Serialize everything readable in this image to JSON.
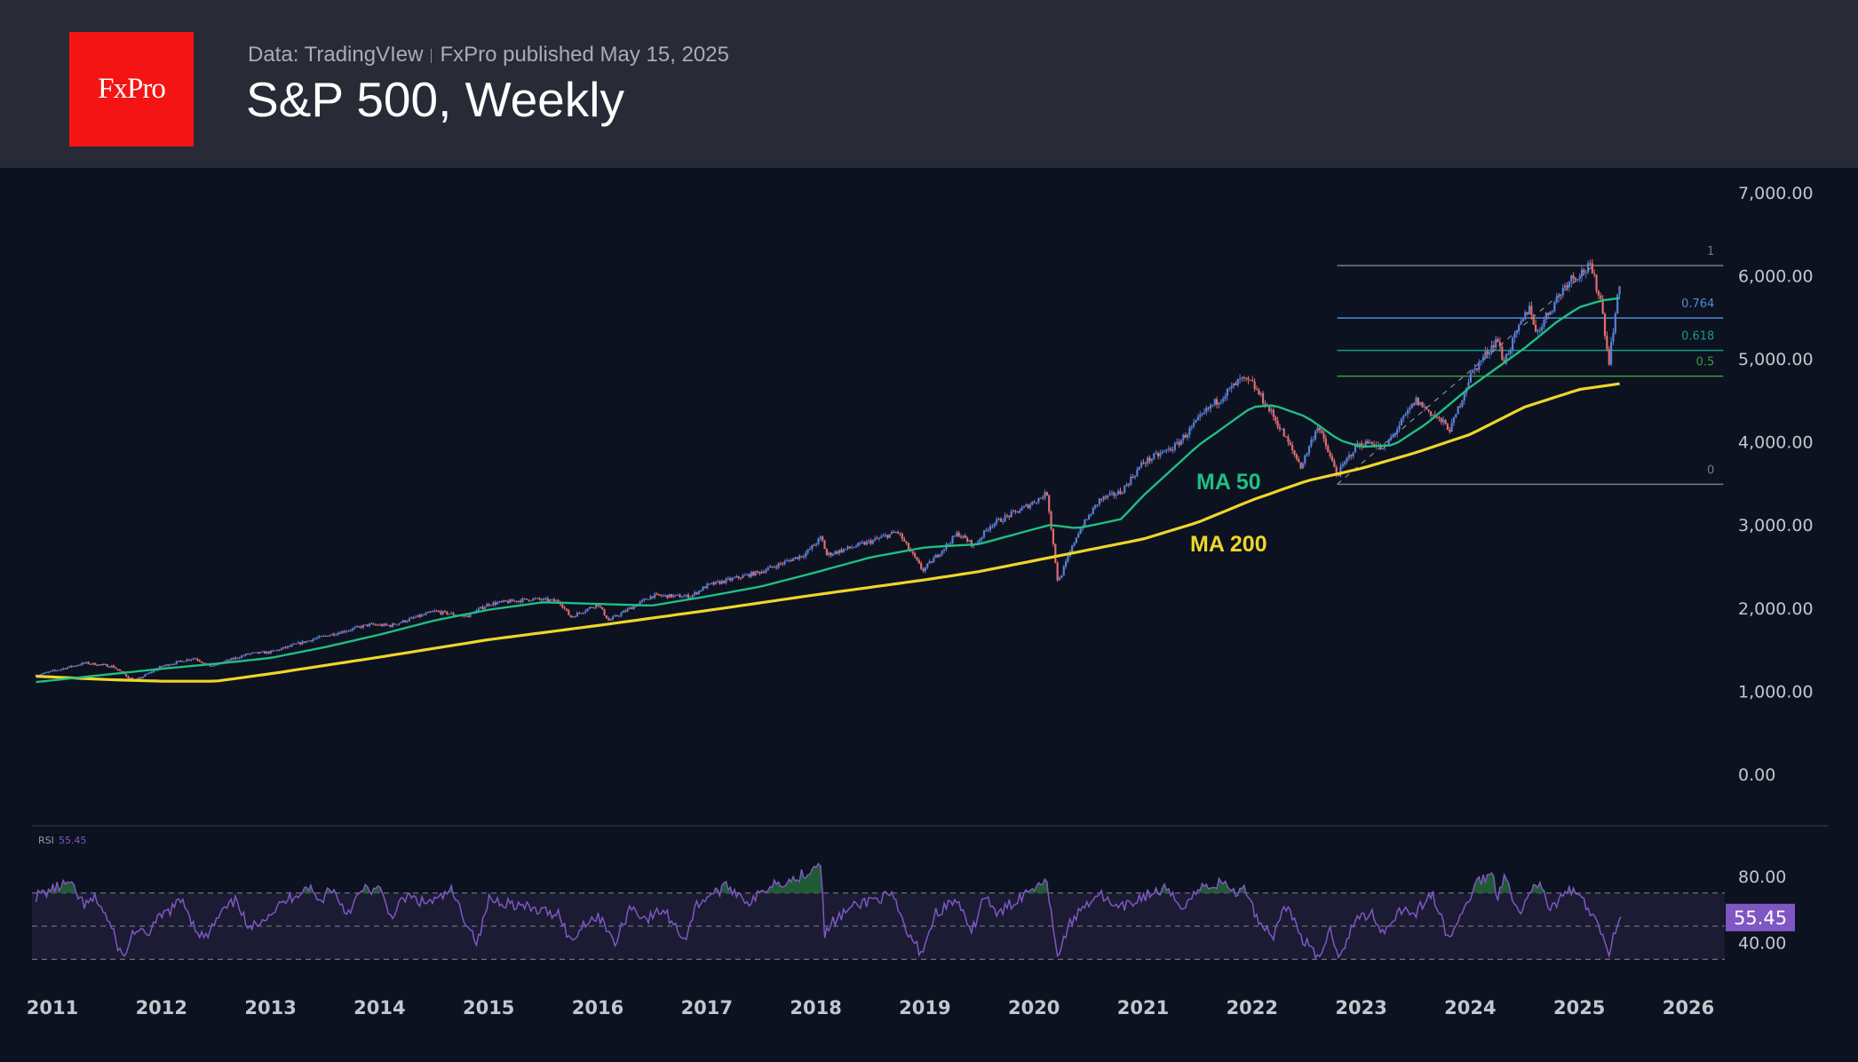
{
  "header": {
    "logo_text": "FxPro",
    "source": "Data: TradingVIew",
    "published": "FxPro published May 15, 2025",
    "title": "S&P 500, Weekly"
  },
  "colors": {
    "up_candle": "#5b7fd6",
    "down_candle": "#e06c70",
    "ma50": "#1fbf82",
    "ma200": "#eed62b",
    "rsi": "#7e57c2",
    "rsi_badge": "#7e57c2",
    "fib_1": "#787b86",
    "fib_0764": "#4f8fd6",
    "fib_0618": "#169a8a",
    "fib_05": "#3f9a3f",
    "fib_0": "#787b86"
  },
  "chart_data": [
    {
      "type": "line",
      "title": "S&P 500, Weekly",
      "ylim": [
        0,
        7000
      ],
      "y_ticks": [
        "7,000.00",
        "6,000.00",
        "5,000.00",
        "4,000.00",
        "3,000.00",
        "2,000.00",
        "1,000.00",
        "0.00"
      ],
      "y_tick_values": [
        7000,
        6000,
        5000,
        4000,
        3000,
        2000,
        1000,
        0
      ],
      "x_ticks": [
        "2011",
        "2012",
        "2013",
        "2014",
        "2015",
        "2016",
        "2017",
        "2018",
        "2019",
        "2020",
        "2021",
        "2022",
        "2023",
        "2024",
        "2025",
        "2026"
      ],
      "x_range": [
        2011.0,
        2026.2
      ],
      "price_anchors": {
        "x": [
          2010.85,
          2011.3,
          2011.55,
          2011.75,
          2012.0,
          2012.3,
          2012.45,
          2012.8,
          2013.0,
          2013.4,
          2013.9,
          2014.1,
          2014.5,
          2014.8,
          2015.0,
          2015.4,
          2015.65,
          2015.75,
          2016.0,
          2016.1,
          2016.5,
          2016.85,
          2017.0,
          2017.5,
          2017.9,
          2018.05,
          2018.1,
          2018.5,
          2018.75,
          2018.98,
          2019.3,
          2019.45,
          2019.6,
          2019.9,
          2020.12,
          2020.22,
          2020.4,
          2020.6,
          2020.8,
          2021.0,
          2021.3,
          2021.6,
          2021.9,
          2022.0,
          2022.2,
          2022.45,
          2022.6,
          2022.78,
          2022.95,
          2023.1,
          2023.2,
          2023.5,
          2023.82,
          2024.0,
          2024.25,
          2024.3,
          2024.55,
          2024.6,
          2024.9,
          2025.1,
          2025.2,
          2025.27,
          2025.32,
          2025.37
        ],
        "y": [
          1190,
          1340,
          1300,
          1120,
          1300,
          1400,
          1300,
          1450,
          1470,
          1630,
          1800,
          1790,
          1960,
          1900,
          2050,
          2110,
          2080,
          1890,
          2050,
          1850,
          2150,
          2140,
          2270,
          2440,
          2650,
          2850,
          2640,
          2800,
          2920,
          2450,
          2900,
          2750,
          3000,
          3200,
          3380,
          2300,
          2900,
          3300,
          3400,
          3750,
          3950,
          4400,
          4750,
          4700,
          4300,
          3700,
          4200,
          3600,
          3950,
          4000,
          3900,
          4500,
          4150,
          4800,
          5250,
          4950,
          5650,
          5300,
          5950,
          6100,
          5700,
          4950,
          5450,
          5880
        ]
      },
      "series": [
        {
          "name": "MA 50",
          "x": [
            2010.85,
            2011.5,
            2012.0,
            2012.5,
            2013.0,
            2013.5,
            2014.0,
            2014.5,
            2015.0,
            2015.5,
            2016.0,
            2016.5,
            2017.0,
            2017.5,
            2018.0,
            2018.5,
            2019.0,
            2019.5,
            2020.0,
            2020.15,
            2020.4,
            2020.8,
            2021.0,
            2021.5,
            2022.0,
            2022.2,
            2022.5,
            2022.8,
            2023.0,
            2023.3,
            2023.6,
            2024.0,
            2024.5,
            2024.8,
            2025.0,
            2025.2,
            2025.37
          ],
          "y": [
            1110,
            1200,
            1270,
            1330,
            1400,
            1530,
            1680,
            1850,
            1980,
            2070,
            2050,
            2030,
            2140,
            2260,
            2430,
            2610,
            2730,
            2770,
            2950,
            3000,
            2960,
            3070,
            3350,
            3950,
            4420,
            4440,
            4300,
            4020,
            3940,
            3960,
            4220,
            4660,
            5130,
            5450,
            5620,
            5700,
            5730
          ]
        },
        {
          "name": "MA 200",
          "x": [
            2010.85,
            2011.5,
            2012.0,
            2012.5,
            2013.0,
            2014.0,
            2015.0,
            2016.0,
            2017.0,
            2018.0,
            2019.0,
            2019.5,
            2020.0,
            2020.5,
            2021.0,
            2021.5,
            2022.0,
            2022.5,
            2023.0,
            2023.5,
            2024.0,
            2024.5,
            2025.0,
            2025.37
          ],
          "y": [
            1180,
            1140,
            1120,
            1120,
            1210,
            1410,
            1620,
            1790,
            1970,
            2160,
            2340,
            2440,
            2570,
            2700,
            2830,
            3030,
            3300,
            3530,
            3680,
            3870,
            4090,
            4420,
            4630,
            4700
          ]
        }
      ],
      "annotations": {
        "ma50_label": "MA 50",
        "ma200_label": "MA 200"
      },
      "fibonacci": {
        "start": {
          "x": 2022.78,
          "y": 3490
        },
        "end": {
          "x": 2025.13,
          "y": 6120
        },
        "levels": [
          {
            "label": "1",
            "price": 6120
          },
          {
            "label": "0.764",
            "price": 5490
          },
          {
            "label": "0.618",
            "price": 5100
          },
          {
            "label": "0.5",
            "price": 4790
          },
          {
            "label": "0",
            "price": 3490
          }
        ],
        "extends_to": 2026.32
      },
      "legend": "none",
      "grid": false
    },
    {
      "type": "line",
      "title": "RSI",
      "current_value": "55.45",
      "ylim": [
        24,
        95
      ],
      "y_ticks": [
        "80.00",
        "40.00"
      ],
      "y_tick_values": [
        80,
        40
      ],
      "bands": {
        "upper": 70,
        "middle": 50,
        "lower": 30
      },
      "x": [
        2010.85,
        2011.0,
        2011.15,
        2011.3,
        2011.4,
        2011.5,
        2011.58,
        2011.65,
        2011.75,
        2011.85,
        2012.0,
        2012.2,
        2012.3,
        2012.4,
        2012.55,
        2012.7,
        2012.8,
        2012.9,
        2013.0,
        2013.2,
        2013.35,
        2013.45,
        2013.55,
        2013.7,
        2013.85,
        2014.0,
        2014.1,
        2014.25,
        2014.4,
        2014.55,
        2014.65,
        2014.8,
        2014.9,
        2015.0,
        2015.2,
        2015.4,
        2015.55,
        2015.65,
        2015.75,
        2015.9,
        2016.05,
        2016.15,
        2016.3,
        2016.45,
        2016.6,
        2016.8,
        2016.9,
        2017.0,
        2017.2,
        2017.4,
        2017.6,
        2017.8,
        2017.95,
        2018.05,
        2018.08,
        2018.15,
        2018.3,
        2018.5,
        2018.7,
        2018.85,
        2018.97,
        2019.1,
        2019.3,
        2019.42,
        2019.55,
        2019.65,
        2019.8,
        2020.0,
        2020.1,
        2020.15,
        2020.22,
        2020.3,
        2020.45,
        2020.6,
        2020.75,
        2020.85,
        2021.0,
        2021.2,
        2021.35,
        2021.55,
        2021.75,
        2021.85,
        2021.95,
        2022.05,
        2022.2,
        2022.3,
        2022.45,
        2022.6,
        2022.72,
        2022.8,
        2022.95,
        2023.1,
        2023.2,
        2023.35,
        2023.5,
        2023.65,
        2023.8,
        2023.92,
        2024.05,
        2024.2,
        2024.25,
        2024.32,
        2024.45,
        2024.55,
        2024.6,
        2024.75,
        2024.9,
        2025.0,
        2025.1,
        2025.2,
        2025.27,
        2025.3,
        2025.35,
        2025.38
      ],
      "y": [
        68,
        72,
        76,
        62,
        67,
        55,
        42,
        30,
        48,
        44,
        56,
        66,
        50,
        42,
        58,
        66,
        46,
        54,
        58,
        68,
        74,
        64,
        74,
        58,
        72,
        72,
        56,
        68,
        64,
        66,
        72,
        52,
        40,
        66,
        64,
        60,
        58,
        58,
        40,
        54,
        55,
        38,
        62,
        54,
        60,
        42,
        62,
        68,
        74,
        64,
        76,
        78,
        84,
        90,
        44,
        52,
        60,
        66,
        68,
        44,
        34,
        58,
        66,
        44,
        70,
        56,
        64,
        74,
        80,
        64,
        30,
        48,
        62,
        70,
        60,
        62,
        68,
        72,
        62,
        74,
        76,
        70,
        72,
        54,
        44,
        64,
        44,
        30,
        48,
        32,
        54,
        58,
        46,
        60,
        58,
        70,
        42,
        56,
        76,
        82,
        68,
        82,
        56,
        70,
        78,
        60,
        72,
        68,
        58,
        46,
        34,
        42,
        52,
        55.45
      ]
    }
  ]
}
